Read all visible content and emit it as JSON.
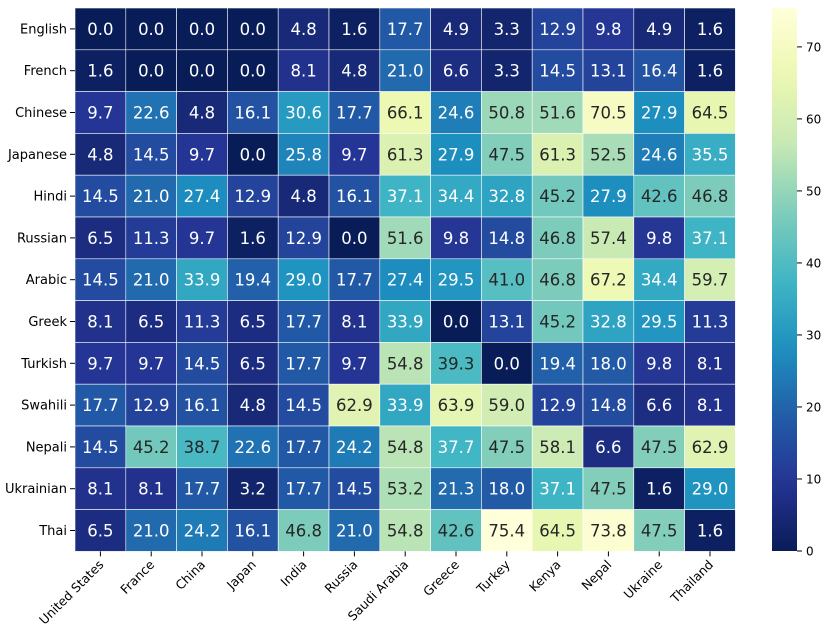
{
  "chart_data": {
    "type": "heatmap",
    "title": "",
    "xlabel": "",
    "ylabel": "",
    "rows": [
      "English",
      "French",
      "Chinese",
      "Japanese",
      "Hindi",
      "Russian",
      "Arabic",
      "Greek",
      "Turkish",
      "Swahili",
      "Nepali",
      "Ukrainian",
      "Thai"
    ],
    "columns": [
      "United States",
      "France",
      "China",
      "Japan",
      "India",
      "Russia",
      "Saudi Arabia",
      "Greece",
      "Turkey",
      "Kenya",
      "Nepal",
      "Ukraine",
      "Thailand"
    ],
    "values": [
      [
        0.0,
        0.0,
        0.0,
        0.0,
        4.8,
        1.6,
        17.7,
        4.9,
        3.3,
        12.9,
        9.8,
        4.9,
        1.6
      ],
      [
        1.6,
        0.0,
        0.0,
        0.0,
        8.1,
        4.8,
        21.0,
        6.6,
        3.3,
        14.5,
        13.1,
        16.4,
        1.6
      ],
      [
        9.7,
        22.6,
        4.8,
        16.1,
        30.6,
        17.7,
        66.1,
        24.6,
        50.8,
        51.6,
        70.5,
        27.9,
        64.5
      ],
      [
        4.8,
        14.5,
        9.7,
        0.0,
        25.8,
        9.7,
        61.3,
        27.9,
        47.5,
        61.3,
        52.5,
        24.6,
        35.5
      ],
      [
        14.5,
        21.0,
        27.4,
        12.9,
        4.8,
        16.1,
        37.1,
        34.4,
        32.8,
        45.2,
        27.9,
        42.6,
        46.8
      ],
      [
        6.5,
        11.3,
        9.7,
        1.6,
        12.9,
        0.0,
        51.6,
        9.8,
        14.8,
        46.8,
        57.4,
        9.8,
        37.1
      ],
      [
        14.5,
        21.0,
        33.9,
        19.4,
        29.0,
        17.7,
        27.4,
        29.5,
        41.0,
        46.8,
        67.2,
        34.4,
        59.7
      ],
      [
        8.1,
        6.5,
        11.3,
        6.5,
        17.7,
        8.1,
        33.9,
        0.0,
        13.1,
        45.2,
        32.8,
        29.5,
        11.3
      ],
      [
        9.7,
        9.7,
        14.5,
        6.5,
        17.7,
        9.7,
        54.8,
        39.3,
        0.0,
        19.4,
        18.0,
        9.8,
        8.1
      ],
      [
        17.7,
        12.9,
        16.1,
        4.8,
        14.5,
        62.9,
        33.9,
        63.9,
        59.0,
        12.9,
        14.8,
        6.6,
        8.1
      ],
      [
        14.5,
        45.2,
        38.7,
        22.6,
        17.7,
        24.2,
        54.8,
        37.7,
        47.5,
        58.1,
        6.6,
        47.5,
        62.9
      ],
      [
        8.1,
        8.1,
        17.7,
        3.2,
        17.7,
        14.5,
        53.2,
        21.3,
        18.0,
        37.1,
        47.5,
        1.6,
        29.0
      ],
      [
        6.5,
        21.0,
        24.2,
        16.1,
        46.8,
        21.0,
        54.8,
        42.6,
        75.4,
        64.5,
        73.8,
        47.5,
        1.6
      ]
    ],
    "value_format": "0.0",
    "colormap": "YlGnBu",
    "vmin": 0,
    "vmax": 75.4,
    "colorbar_ticks": [
      0,
      10,
      20,
      30,
      40,
      50,
      60,
      70
    ]
  }
}
